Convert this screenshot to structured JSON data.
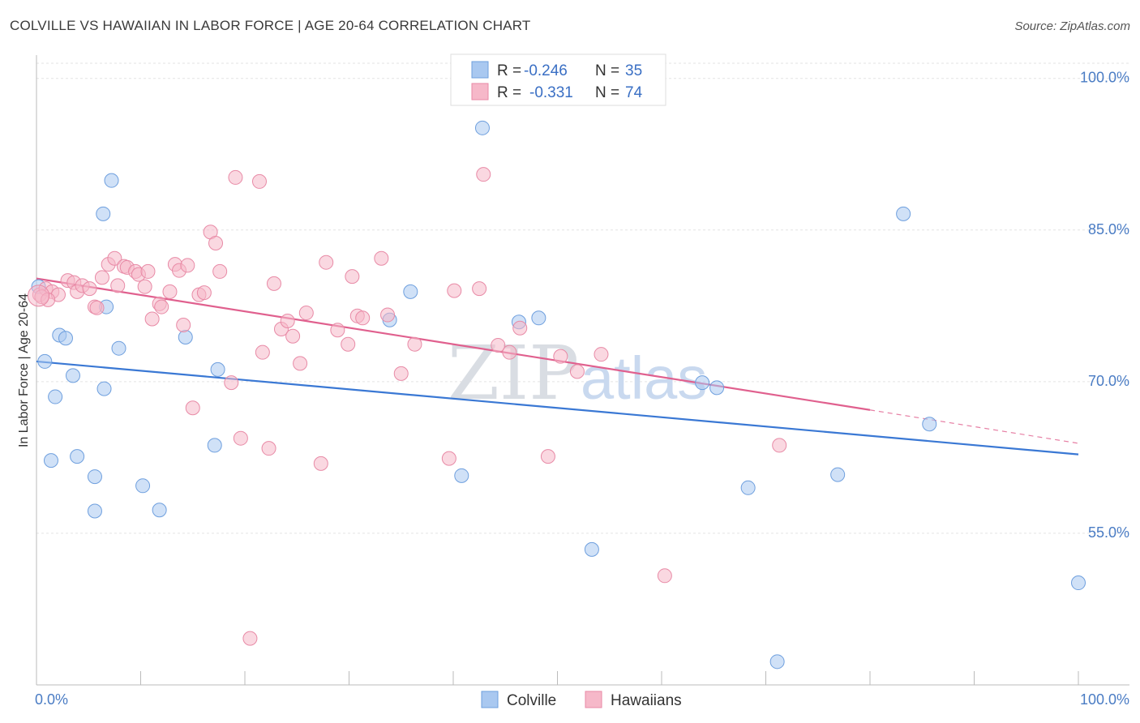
{
  "header": {
    "title": "COLVILLE VS HAWAIIAN IN LABOR FORCE | AGE 20-64 CORRELATION CHART",
    "source": "Source: ZipAtlas.com"
  },
  "watermark": {
    "zip": "ZIP",
    "atlas": "atlas"
  },
  "legend_top": {
    "rows": [
      {
        "r_label": "R =",
        "r_value": "-0.246",
        "n_label": "N =",
        "n_value": "35",
        "color": "#a9c8f0"
      },
      {
        "r_label": "R =",
        "r_value": "-0.331",
        "n_label": "N =",
        "n_value": "74",
        "color": "#f6b8c9"
      }
    ]
  },
  "legend_bottom": {
    "items": [
      {
        "label": "Colville",
        "color": "#a9c8f0"
      },
      {
        "label": "Hawaiians",
        "color": "#f6b8c9"
      }
    ]
  },
  "chart_data": {
    "type": "scatter",
    "title": "COLVILLE VS HAWAIIAN IN LABOR FORCE | AGE 20-64 CORRELATION CHART",
    "xlabel": "",
    "ylabel": "In Labor Force | Age 20-64",
    "xlim": [
      0,
      100
    ],
    "ylim": [
      40,
      101.5
    ],
    "x_tick_labels": [
      "0.0%",
      "100.0%"
    ],
    "y_ticks": [
      55,
      70,
      85,
      100
    ],
    "y_tick_labels": [
      "55.0%",
      "70.0%",
      "85.0%",
      "100.0%"
    ],
    "series": [
      {
        "name": "Colville",
        "color": "#a9c8f0",
        "stroke": "#6e9fde",
        "trend_color": "#3a78d4",
        "trend": {
          "x0": 0,
          "y0": 72.0,
          "x1": 100,
          "y1": 62.8
        },
        "points": [
          [
            0.2,
            79.4
          ],
          [
            0.8,
            72.0
          ],
          [
            1.4,
            62.2
          ],
          [
            1.8,
            68.5
          ],
          [
            2.2,
            74.6
          ],
          [
            2.8,
            74.3
          ],
          [
            3.5,
            70.6
          ],
          [
            3.9,
            62.6
          ],
          [
            5.6,
            60.6
          ],
          [
            5.6,
            57.2
          ],
          [
            6.7,
            77.4
          ],
          [
            6.5,
            69.3
          ],
          [
            7.2,
            89.9
          ],
          [
            6.4,
            86.6
          ],
          [
            7.9,
            73.3
          ],
          [
            10.2,
            59.7
          ],
          [
            11.8,
            57.3
          ],
          [
            14.3,
            74.4
          ],
          [
            17.4,
            71.2
          ],
          [
            17.1,
            63.7
          ],
          [
            33.9,
            76.1
          ],
          [
            35.9,
            78.9
          ],
          [
            40.8,
            60.7
          ],
          [
            42.8,
            95.1
          ],
          [
            46.3,
            75.9
          ],
          [
            48.2,
            76.3
          ],
          [
            53.3,
            53.4
          ],
          [
            63.9,
            69.9
          ],
          [
            65.3,
            69.4
          ],
          [
            68.3,
            59.5
          ],
          [
            71.1,
            42.3
          ],
          [
            76.9,
            60.8
          ],
          [
            83.2,
            86.6
          ],
          [
            85.7,
            65.8
          ],
          [
            100.0,
            50.1
          ]
        ]
      },
      {
        "name": "Hawaiians",
        "color": "#f6b8c9",
        "stroke": "#e88aa6",
        "trend_color": "#e0608e",
        "trend": {
          "x0": 0,
          "y0": 80.2,
          "x1": 80,
          "y1": 67.2,
          "dash_x1": 100,
          "dash_y1": 63.9
        },
        "points": [
          [
            0.3,
            78.6
          ],
          [
            0.9,
            79.2
          ],
          [
            1.5,
            78.9
          ],
          [
            2.1,
            78.6
          ],
          [
            3.0,
            80.0
          ],
          [
            3.6,
            79.8
          ],
          [
            3.9,
            78.9
          ],
          [
            4.4,
            79.5
          ],
          [
            5.1,
            79.2
          ],
          [
            5.6,
            77.4
          ],
          [
            5.8,
            77.3
          ],
          [
            6.3,
            80.3
          ],
          [
            6.9,
            81.6
          ],
          [
            7.5,
            82.2
          ],
          [
            7.8,
            79.5
          ],
          [
            8.4,
            81.4
          ],
          [
            8.7,
            81.3
          ],
          [
            9.5,
            80.9
          ],
          [
            9.8,
            80.6
          ],
          [
            10.4,
            79.4
          ],
          [
            10.7,
            80.9
          ],
          [
            11.1,
            76.2
          ],
          [
            11.8,
            77.7
          ],
          [
            12.0,
            77.4
          ],
          [
            12.8,
            78.9
          ],
          [
            13.3,
            81.6
          ],
          [
            13.7,
            81.0
          ],
          [
            14.1,
            75.6
          ],
          [
            14.5,
            81.5
          ],
          [
            15.0,
            67.4
          ],
          [
            15.6,
            78.6
          ],
          [
            16.1,
            78.8
          ],
          [
            16.7,
            84.8
          ],
          [
            17.2,
            83.7
          ],
          [
            17.6,
            80.9
          ],
          [
            18.7,
            69.9
          ],
          [
            19.1,
            90.2
          ],
          [
            19.6,
            64.4
          ],
          [
            20.5,
            44.6
          ],
          [
            21.4,
            89.8
          ],
          [
            21.7,
            72.9
          ],
          [
            22.3,
            63.4
          ],
          [
            22.8,
            79.7
          ],
          [
            23.5,
            75.2
          ],
          [
            24.1,
            76.0
          ],
          [
            24.6,
            74.5
          ],
          [
            25.3,
            71.8
          ],
          [
            25.9,
            76.8
          ],
          [
            27.3,
            61.9
          ],
          [
            27.8,
            81.8
          ],
          [
            28.9,
            75.1
          ],
          [
            29.9,
            73.7
          ],
          [
            30.3,
            80.4
          ],
          [
            30.8,
            76.5
          ],
          [
            31.3,
            76.3
          ],
          [
            33.1,
            82.2
          ],
          [
            33.7,
            76.6
          ],
          [
            35.0,
            70.8
          ],
          [
            36.3,
            73.7
          ],
          [
            39.6,
            62.4
          ],
          [
            40.1,
            79.0
          ],
          [
            42.5,
            79.2
          ],
          [
            42.9,
            90.5
          ],
          [
            44.3,
            73.6
          ],
          [
            45.4,
            72.9
          ],
          [
            46.4,
            75.3
          ],
          [
            49.1,
            62.6
          ],
          [
            50.3,
            72.5
          ],
          [
            51.9,
            71.0
          ],
          [
            54.2,
            72.7
          ],
          [
            60.3,
            50.8
          ],
          [
            71.3,
            63.7
          ],
          [
            0.5,
            78.4
          ],
          [
            1.1,
            78.1
          ]
        ]
      }
    ]
  }
}
